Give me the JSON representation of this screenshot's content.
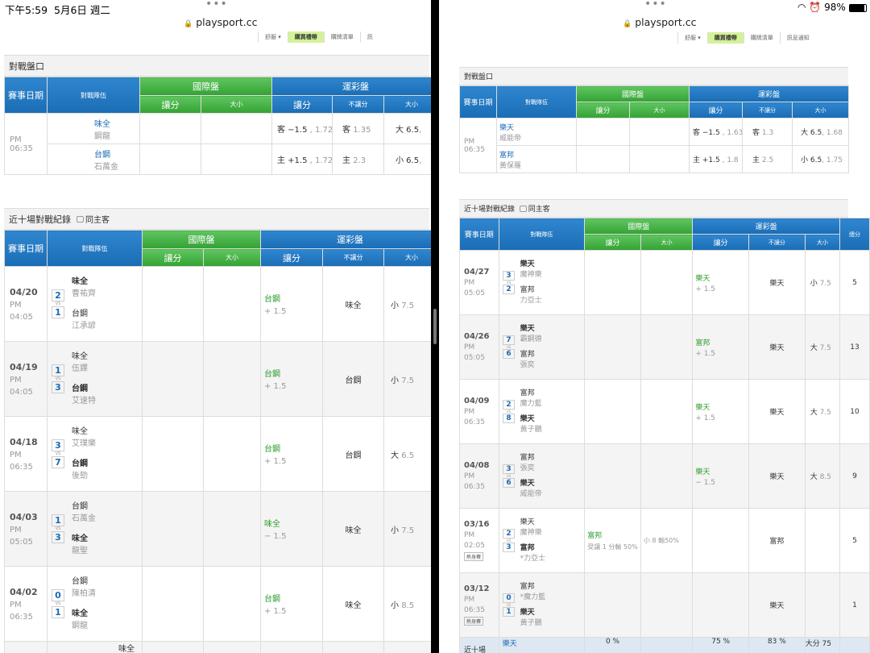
{
  "left": {
    "status": {
      "time": "下午5:59",
      "date": "5月6日 週二"
    },
    "url": "playsport.cc",
    "menu": [
      "舒服 ▾",
      "購買禮帶",
      "購牌清單",
      "訊"
    ],
    "odds": {
      "title": "對戰盤口",
      "headers": {
        "date": "賽事日期",
        "teams": "對戰隊伍",
        "intl": "國際盤",
        "sports": "運彩盤",
        "spread": "讓分",
        "total": "大小",
        "nospread": "不讓分"
      },
      "row": {
        "ampm": "PM",
        "time": "06:35",
        "away": "味全",
        "away_p": "鋼龍",
        "home": "台鋼",
        "home_p": "石萬金",
        "a_spread": "客 −1.5",
        "a_spread_o": ", 1.72",
        "a_ml": "客",
        "a_ml_o": "1.35",
        "a_tot": "大 6.5",
        "a_tot_o": ", ",
        "h_spread": "主 +1.5",
        "h_spread_o": ", 1.72",
        "h_ml": "主",
        "h_ml_o": "2.3",
        "h_tot": "小 6.5",
        "h_tot_o": ", "
      }
    },
    "recent": {
      "title": "近十場對戰紀錄",
      "checkbox": "同主客",
      "rows": [
        {
          "date": "04/20",
          "ampm": "PM",
          "time": "04:05",
          "t1": "味全",
          "p1": "曹祐齊",
          "s1": "2",
          "t2": "台鋼",
          "p2": "江承諺",
          "s2": "1",
          "win1": true,
          "pick": "台鋼",
          "pick_line": "+ 1.5",
          "ml": "味全",
          "tot": "小",
          "tot_v": "7.5"
        },
        {
          "date": "04/19",
          "ampm": "PM",
          "time": "04:05",
          "t1": "味全",
          "p1": "伍鐸",
          "s1": "1",
          "t2": "台鋼",
          "p2": "艾速特",
          "s2": "3",
          "win1": false,
          "pick": "台鋼",
          "pick_line": "+ 1.5",
          "ml": "台鋼",
          "tot": "小",
          "tot_v": "7.5"
        },
        {
          "date": "04/18",
          "ampm": "PM",
          "time": "06:35",
          "t1": "味全",
          "p1": "艾璞樂",
          "s1": "3",
          "t2": "台鋼",
          "p2": "後勁",
          "s2": "7",
          "win1": false,
          "pick": "台鋼",
          "pick_line": "+ 1.5",
          "ml": "台鋼",
          "tot": "大",
          "tot_v": "6.5"
        },
        {
          "date": "04/03",
          "ampm": "PM",
          "time": "05:05",
          "t1": "台鋼",
          "p1": "石萬金",
          "s1": "1",
          "t2": "味全",
          "p2": "龍聖",
          "s2": "3",
          "win1": false,
          "pick": "味全",
          "pick_line": "− 1.5",
          "ml": "味全",
          "tot": "小",
          "tot_v": "7.5"
        },
        {
          "date": "04/02",
          "ampm": "PM",
          "time": "06:35",
          "t1": "台鋼",
          "p1": "陳柏清",
          "s1": "0",
          "t2": "味全",
          "p2": "鋼龍",
          "s2": "1",
          "win1": false,
          "pick": "台鋼",
          "pick_line": "+ 1.5",
          "ml": "味全",
          "tot": "小",
          "tot_v": "8.5"
        }
      ],
      "partial": "味全"
    }
  },
  "right": {
    "status": {
      "battery": "98%"
    },
    "url": "playsport.cc",
    "menu": [
      "舒服 ▾",
      "購買禮帶",
      "購牌清單",
      "訊息通知"
    ],
    "odds": {
      "title": "對戰盤口",
      "row": {
        "ampm": "PM",
        "time": "06:35",
        "away": "樂天",
        "away_p": "威能帝",
        "home": "富邦",
        "home_p": "黃保羅",
        "a_spread": "客 −1.5",
        "a_spread_o": ", 1.63",
        "a_ml": "客",
        "a_ml_o": "1.3",
        "a_tot": "大 6.5",
        "a_tot_o": ", 1.68",
        "h_spread": "主 +1.5",
        "h_spread_o": ", 1.8",
        "h_ml": "主",
        "h_ml_o": "2.5",
        "h_tot": "小 6.5",
        "h_tot_o": ", 1.75"
      }
    },
    "recent": {
      "title": "近十場對戰紀錄",
      "checkbox": "同主客",
      "total_header": "總分",
      "rows": [
        {
          "date": "04/27",
          "ampm": "PM",
          "time": "05:05",
          "t1": "樂天",
          "p1": "魔神樂",
          "s1": "3",
          "t2": "富邦",
          "p2": "力亞士",
          "s2": "2",
          "win1": true,
          "ispread": "",
          "iline": "",
          "itot": "",
          "pick": "樂天",
          "pick_line": "+ 1.5",
          "ml": "樂天",
          "tot": "小",
          "tot_v": "7.5",
          "sum": "5",
          "badge": ""
        },
        {
          "date": "04/26",
          "ampm": "PM",
          "time": "05:05",
          "t1": "樂天",
          "p1": "霸鋼德",
          "s1": "7",
          "t2": "富邦",
          "p2": "張奕",
          "s2": "6",
          "win1": true,
          "ispread": "",
          "iline": "",
          "itot": "",
          "pick": "富邦",
          "pick_line": "+ 1.5",
          "ml": "樂天",
          "tot": "大",
          "tot_v": "7.5",
          "sum": "13",
          "badge": ""
        },
        {
          "date": "04/09",
          "ampm": "PM",
          "time": "06:35",
          "t1": "富邦",
          "p1": "魔力藍",
          "s1": "2",
          "t2": "樂天",
          "p2": "黃子鵬",
          "s2": "8",
          "win1": false,
          "ispread": "",
          "iline": "",
          "itot": "",
          "pick": "樂天",
          "pick_line": "+ 1.5",
          "ml": "樂天",
          "tot": "大",
          "tot_v": "7.5",
          "sum": "10",
          "badge": ""
        },
        {
          "date": "04/08",
          "ampm": "PM",
          "time": "06:35",
          "t1": "富邦",
          "p1": "張奕",
          "s1": "3",
          "t2": "樂天",
          "p2": "威能帝",
          "s2": "6",
          "win1": false,
          "ispread": "",
          "iline": "",
          "itot": "",
          "pick": "樂天",
          "pick_line": "− 1.5",
          "ml": "樂天",
          "tot": "大",
          "tot_v": "8.5",
          "sum": "9",
          "badge": ""
        },
        {
          "date": "03/16",
          "ampm": "PM",
          "time": "02:05",
          "t1": "樂天",
          "p1": "魔神樂",
          "s1": "2",
          "t2": "富邦",
          "p2": "*力亞士",
          "s2": "3",
          "win1": false,
          "ispread": "富邦",
          "iline": "受讓 1 分輸 50%",
          "itot": "小 8 輸50%",
          "pick": "",
          "pick_line": "",
          "ml": "富邦",
          "tot": "",
          "tot_v": "",
          "sum": "5",
          "badge": "熱身賽"
        },
        {
          "date": "03/12",
          "ampm": "PM",
          "time": "06:35",
          "t1": "富邦",
          "p1": "*魔力藍",
          "s1": "0",
          "t2": "樂天",
          "p2": "黃子鵬",
          "s2": "1",
          "win1": false,
          "ispread": "",
          "iline": "",
          "itot": "",
          "pick": "",
          "pick_line": "",
          "ml": "樂天",
          "tot": "",
          "tot_v": "",
          "sum": "1",
          "badge": "熱身賽"
        }
      ],
      "summary": {
        "label": "近十場",
        "team": "樂天",
        "p1": "0 %",
        "p2": "75 %",
        "p3": "83 %",
        "p4": "大分 75"
      }
    }
  }
}
